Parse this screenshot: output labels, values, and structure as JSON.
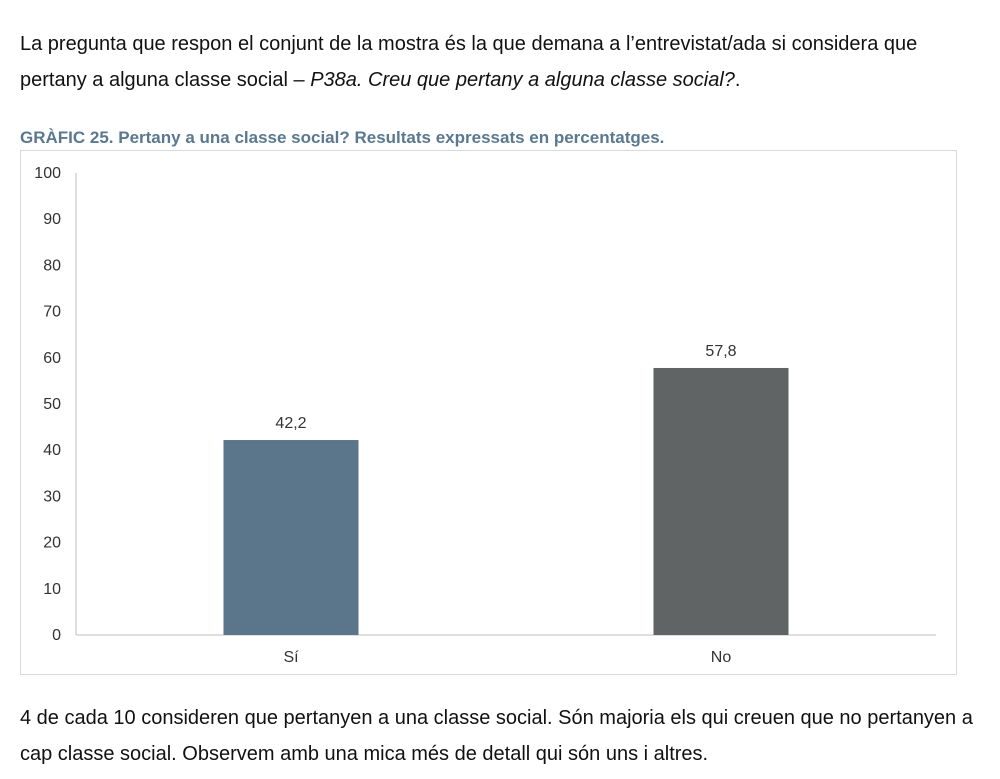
{
  "intro": {
    "text_plain": "La pregunta que respon el conjunt de la mostra és la que demana a l’entrevistat/ada si considera que pertany a alguna classe social – ",
    "text_italic": "P38a. Creu que pertany a alguna classe social?",
    "text_end": "."
  },
  "chart_title": "GRÀFIC 25. Pertany a una classe social? Resultats expressats en percentatges.",
  "chart_data": {
    "type": "bar",
    "categories": [
      "Sí",
      "No"
    ],
    "values": [
      42.2,
      57.8
    ],
    "data_labels": [
      "42,2",
      "57,8"
    ],
    "colors": [
      "#5b768b",
      "#606464"
    ],
    "title": "GRÀFIC 25. Pertany a una classe social? Resultats expressats en percentatges.",
    "xlabel": "",
    "ylabel": "",
    "ylim": [
      0,
      100
    ],
    "yticks": [
      0,
      10,
      20,
      30,
      40,
      50,
      60,
      70,
      80,
      90,
      100
    ],
    "grid": false
  },
  "outro": {
    "text": "4 de cada 10 consideren que pertanyen a una classe social. Són majoria els qui creuen que no pertanyen a cap classe social. Observem amb una mica més de detall qui són uns i altres."
  }
}
